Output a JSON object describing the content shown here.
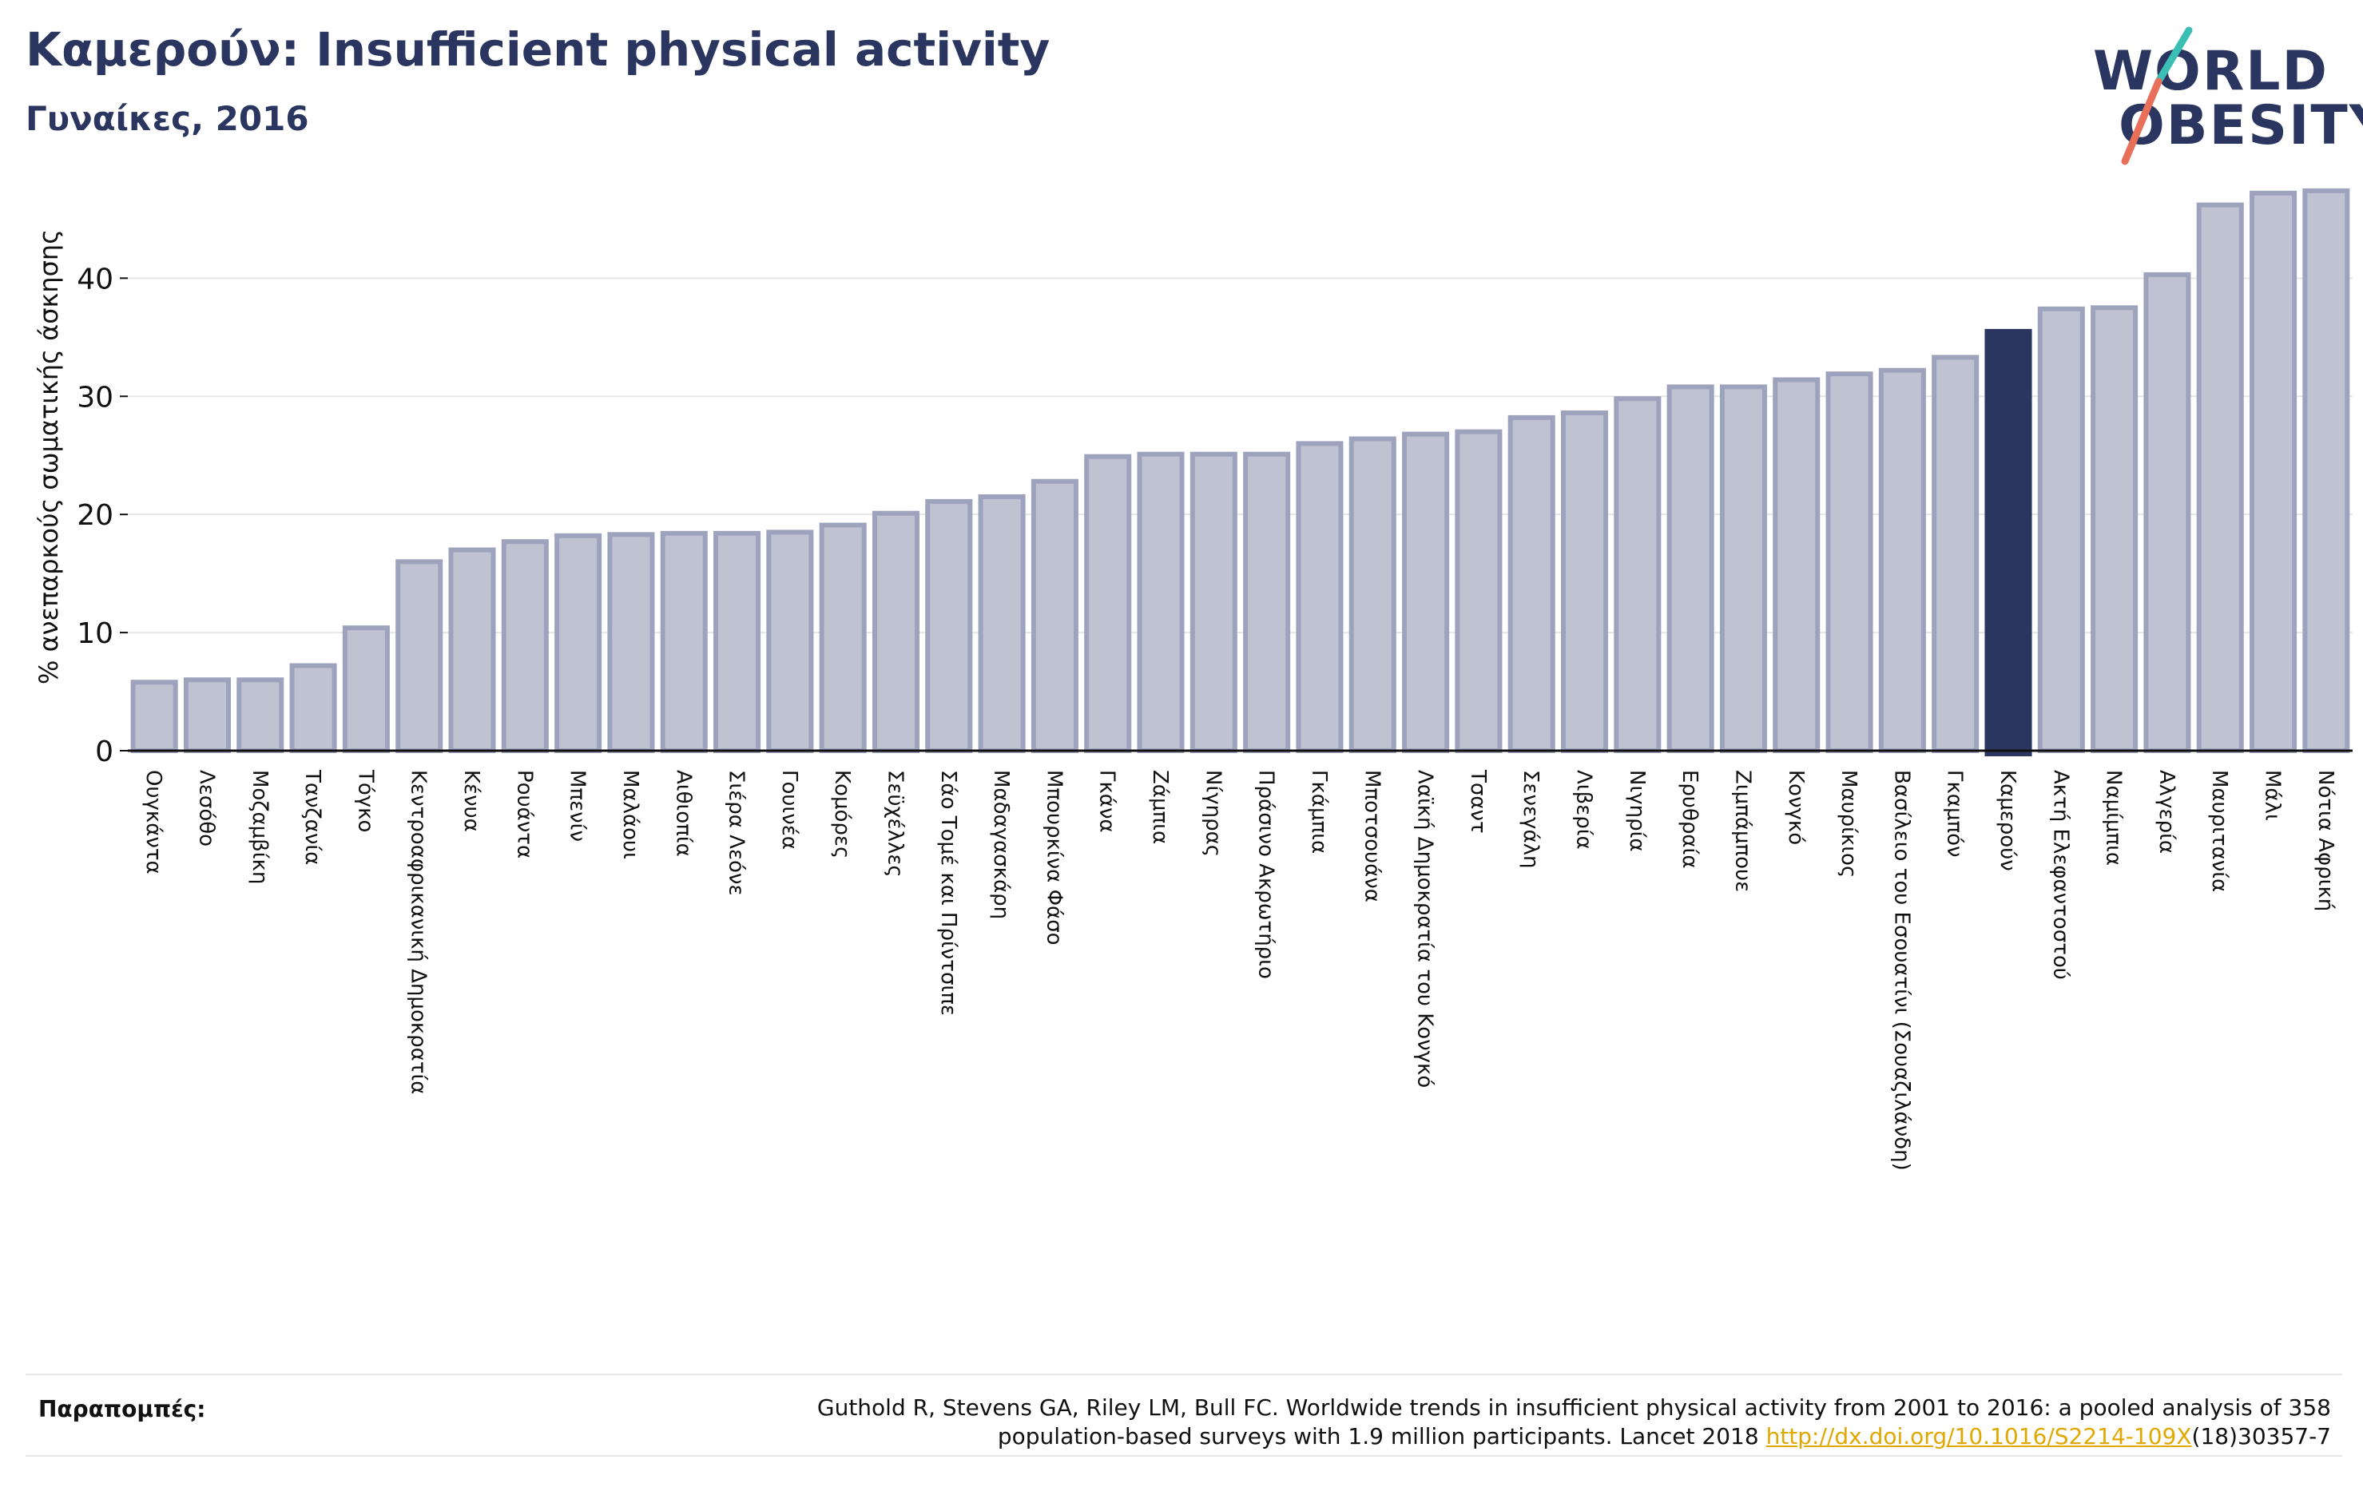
{
  "header": {
    "title": "Καμερούν: Insufficient physical activity",
    "subtitle": "Γυναίκες, 2016"
  },
  "logo": {
    "line1": "WORLD",
    "line2": "OBESITY"
  },
  "colors": {
    "bar_fill": "#bfc3d1",
    "bar_stroke": "#9ea3bd",
    "highlight": "#2a3560",
    "grid": "#e6e6e6",
    "logo_teal": "#3bbfb4",
    "logo_coral": "#e8705a"
  },
  "chart_data": {
    "type": "bar",
    "ylabel": "% ανεπαρκούς σωματικής άσκησης",
    "ylim": [
      0,
      48
    ],
    "yticks": [
      0,
      10,
      20,
      30,
      40
    ],
    "grid": true,
    "highlight_category": "Καμερούν",
    "categories": [
      "Ουγκάντα",
      "Λεσόθο",
      "Μοζαμβίκη",
      "Τανζανία",
      "Τόγκο",
      "Κεντροαφρικανική Δημοκρατία",
      "Κένυα",
      "Ρουάντα",
      "Μπενίν",
      "Μαλάουι",
      "Αιθιοπία",
      "Σιέρα Λεόνε",
      "Γουινέα",
      "Κομόρες",
      "Σεϋχέλλες",
      "Σάο Τομέ και Πρίντσιπε",
      "Μαδαγασκάρη",
      "Μπουρκίνα Φάσο",
      "Γκάνα",
      "Ζάμπια",
      "Νίγηρας",
      "Πράσινο Ακρωτήριο",
      "Γκάμπια",
      "Μποτσουάνα",
      "Λαϊκή Δημοκρατία του Κονγκό",
      "Τσαντ",
      "Σενεγάλη",
      "Λιβερία",
      "Νιγηρία",
      "Ερυθραία",
      "Ζιμπάμπουε",
      "Κονγκό",
      "Μαυρίκιος",
      "Βασίλειο του Εσουατίνι (Σουαζιλάνδη)",
      "Γκαμπόν",
      "Καμερούν",
      "Ακτή Ελεφαντοστού",
      "Ναμίμπια",
      "Αλγερία",
      "Μαυριτανία",
      "Μάλι",
      "Νότια Αφρική"
    ],
    "values": [
      5.8,
      6.0,
      6.0,
      7.2,
      10.4,
      16.0,
      17.0,
      17.7,
      18.2,
      18.3,
      18.4,
      18.4,
      18.5,
      19.1,
      20.1,
      21.1,
      21.5,
      22.8,
      24.9,
      25.1,
      25.1,
      25.1,
      26.0,
      26.4,
      26.8,
      27.0,
      28.2,
      28.6,
      29.8,
      30.8,
      30.8,
      31.4,
      31.9,
      32.2,
      33.3,
      35.5,
      37.4,
      37.5,
      40.3,
      46.2,
      47.2,
      47.4
    ]
  },
  "footer": {
    "label": "Παραπομπές:",
    "citation_line1": "Guthold R, Stevens GA, Riley LM, Bull FC. Worldwide trends in insufficient physical activity from 2001 to 2016: a pooled analysis of 358",
    "citation_line2_prefix": "population-based surveys with 1.9 million participants. Lancet 2018 ",
    "citation_link": "http://dx.doi.org/10.1016/S2214-109X",
    "citation_line2_suffix": "(18)30357-7"
  }
}
